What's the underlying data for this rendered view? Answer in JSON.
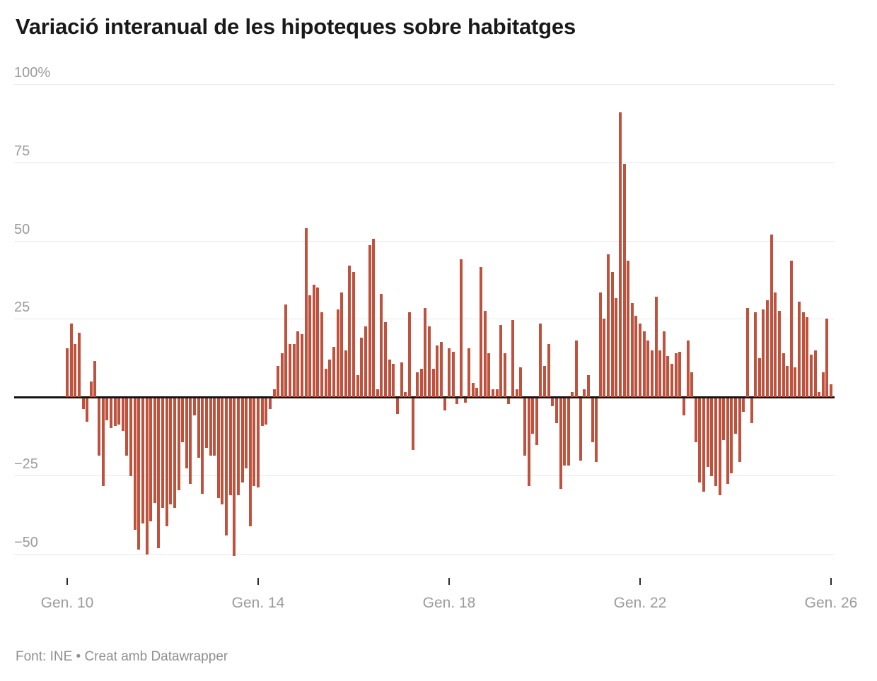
{
  "title": "Variació interanual de les hipoteques sobre habitatges",
  "footer": "Font: INE • Creat amb Datawrapper",
  "colors": {
    "bar": "#c0523d",
    "zero_axis": "#141414",
    "gridline": "#e8e8e8",
    "axis_label": "#9b9b9b",
    "title_text": "#191919",
    "footer_text": "#909090",
    "background": "#ffffff"
  },
  "chart_data": {
    "type": "bar",
    "title": "Variació interanual de les hipoteques sobre habitatges",
    "source": "Font: INE",
    "tool": "Creat amb Datawrapper",
    "unit": "%",
    "frequency": "monthly",
    "x_start": "Gen. 2010",
    "x_end": "Gen. 2026",
    "ylim": [
      -55,
      105
    ],
    "grid": true,
    "y_gridlines": [
      100,
      75,
      50,
      25,
      -25,
      -50
    ],
    "y_tick_labels": [
      "100%",
      "75",
      "50",
      "25",
      "−25",
      "−50"
    ],
    "x_ticks": [
      {
        "label": "Gen. 10",
        "index": 0
      },
      {
        "label": "Gen. 14",
        "index": 48
      },
      {
        "label": "Gen. 18",
        "index": 96
      },
      {
        "label": "Gen. 22",
        "index": 144
      },
      {
        "label": "Gen. 26",
        "index": 192
      }
    ],
    "values": [
      15.5,
      23.5,
      17,
      20.5,
      -3.5,
      -7.5,
      5,
      11.5,
      -18.5,
      -28,
      -7,
      -9.5,
      -9,
      -8.5,
      -10.5,
      -18.5,
      -25,
      -42,
      -48.5,
      -40,
      -50,
      -39.5,
      -33.5,
      -48,
      -35,
      -41,
      -34,
      -35,
      -29.5,
      -14,
      -22.5,
      -27.5,
      -5.5,
      -19,
      -30.5,
      -16,
      -18.5,
      -18.5,
      -32,
      -34,
      -44,
      -31,
      -50.5,
      -31,
      -27,
      -22.5,
      -41,
      -28,
      -28.5,
      -9,
      -8.5,
      -3.5,
      2.5,
      10,
      14,
      29.5,
      17,
      17,
      21,
      20,
      54,
      32.5,
      36,
      35,
      27,
      9,
      12,
      16,
      28,
      33.5,
      15,
      42,
      40,
      7,
      19,
      22.5,
      48.5,
      50.5,
      2.5,
      33,
      24,
      12,
      10.5,
      -5,
      11,
      1.5,
      27,
      -16.5,
      8,
      9,
      28.5,
      22.5,
      9,
      16.5,
      17.5,
      -4,
      15.5,
      14.5,
      -2,
      44,
      -1.5,
      15.5,
      4.5,
      3,
      41.5,
      27.5,
      14,
      2.5,
      2.5,
      23,
      14,
      -2,
      24.5,
      2.5,
      9.5,
      -18.5,
      -28,
      -11.5,
      -15,
      23.5,
      10,
      17,
      -2.5,
      -8,
      -29,
      -21.5,
      -21.5,
      1.5,
      18,
      -20,
      2.5,
      7,
      -14,
      -20.5,
      33.5,
      25,
      45.5,
      40,
      31.5,
      91,
      74.5,
      43.5,
      30,
      26,
      23.5,
      21,
      18,
      15,
      32,
      15,
      21,
      13,
      10.5,
      14,
      14.5,
      -5.5,
      18,
      8,
      -14,
      -27,
      -30,
      -22,
      -25,
      -28,
      -31,
      -13.5,
      -27.5,
      -24,
      -11.5,
      -20.5,
      -4.5,
      28.5,
      -8,
      27,
      12.5,
      28,
      31,
      52,
      33.5,
      27.5,
      14,
      10,
      43.5,
      9.5,
      30.5,
      27,
      25.5,
      13.5,
      15,
      1.5,
      8,
      25,
      4
    ]
  }
}
